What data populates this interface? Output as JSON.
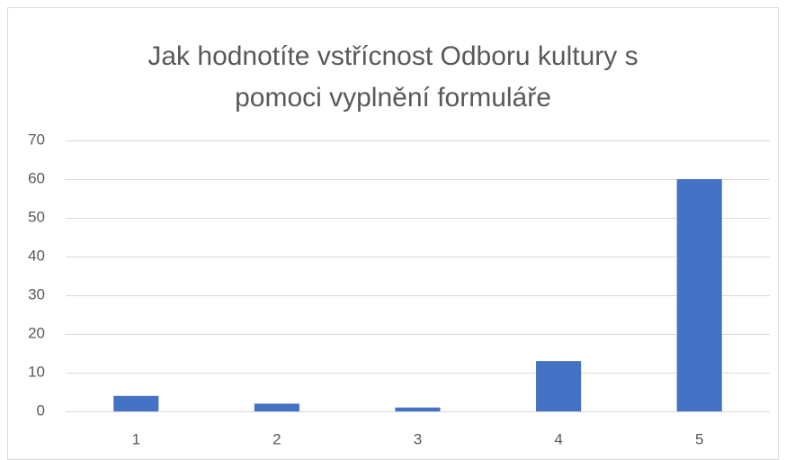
{
  "chart_data": {
    "type": "bar",
    "title": "Jak hodnotíte vstřícnost Odboru kultury s pomoci vyplnění formuláře",
    "categories": [
      "1",
      "2",
      "3",
      "4",
      "5"
    ],
    "values": [
      4,
      2,
      1,
      13,
      60
    ],
    "color": "#4472c4",
    "ylim": [
      0,
      70
    ],
    "yticks": [
      0,
      10,
      20,
      30,
      40,
      50,
      60,
      70
    ],
    "grid": true
  }
}
